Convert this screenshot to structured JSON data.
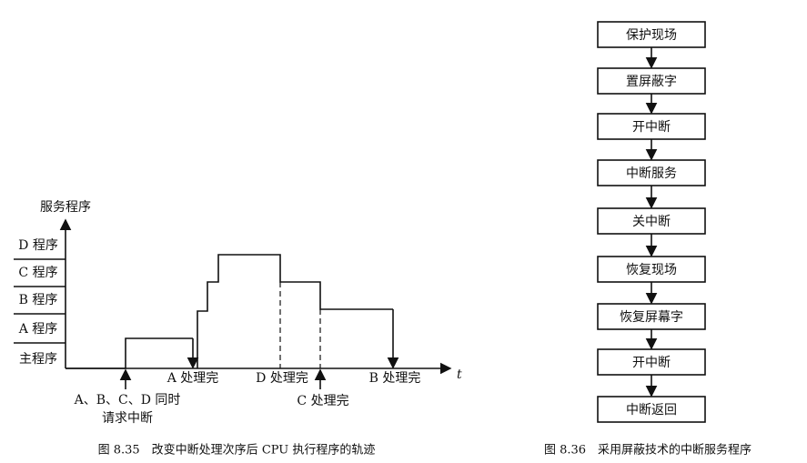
{
  "figure_left": {
    "y_axis_label": "服务程序",
    "x_axis_label": "t",
    "levels": [
      "D 程序",
      "C 程序",
      "B 程序",
      "A 程序",
      "主程序"
    ],
    "events": {
      "request": [
        "A、B、C、D 同时",
        "请求中断"
      ],
      "a_done": "A 处理完",
      "d_done": "D 处理完",
      "c_done": "C 处理完",
      "b_done": "B 处理完"
    },
    "caption": "图 8.35　改变中断处理次序后 CPU 执行程序的轨迹"
  },
  "figure_right": {
    "steps": [
      "保护现场",
      "置屏蔽字",
      "开中断",
      "中断服务",
      "关中断",
      "恢复现场",
      "恢复屏幕字",
      "开中断",
      "中断返回"
    ],
    "caption": "图 8.36　采用屏蔽技术的中断服务程序"
  }
}
